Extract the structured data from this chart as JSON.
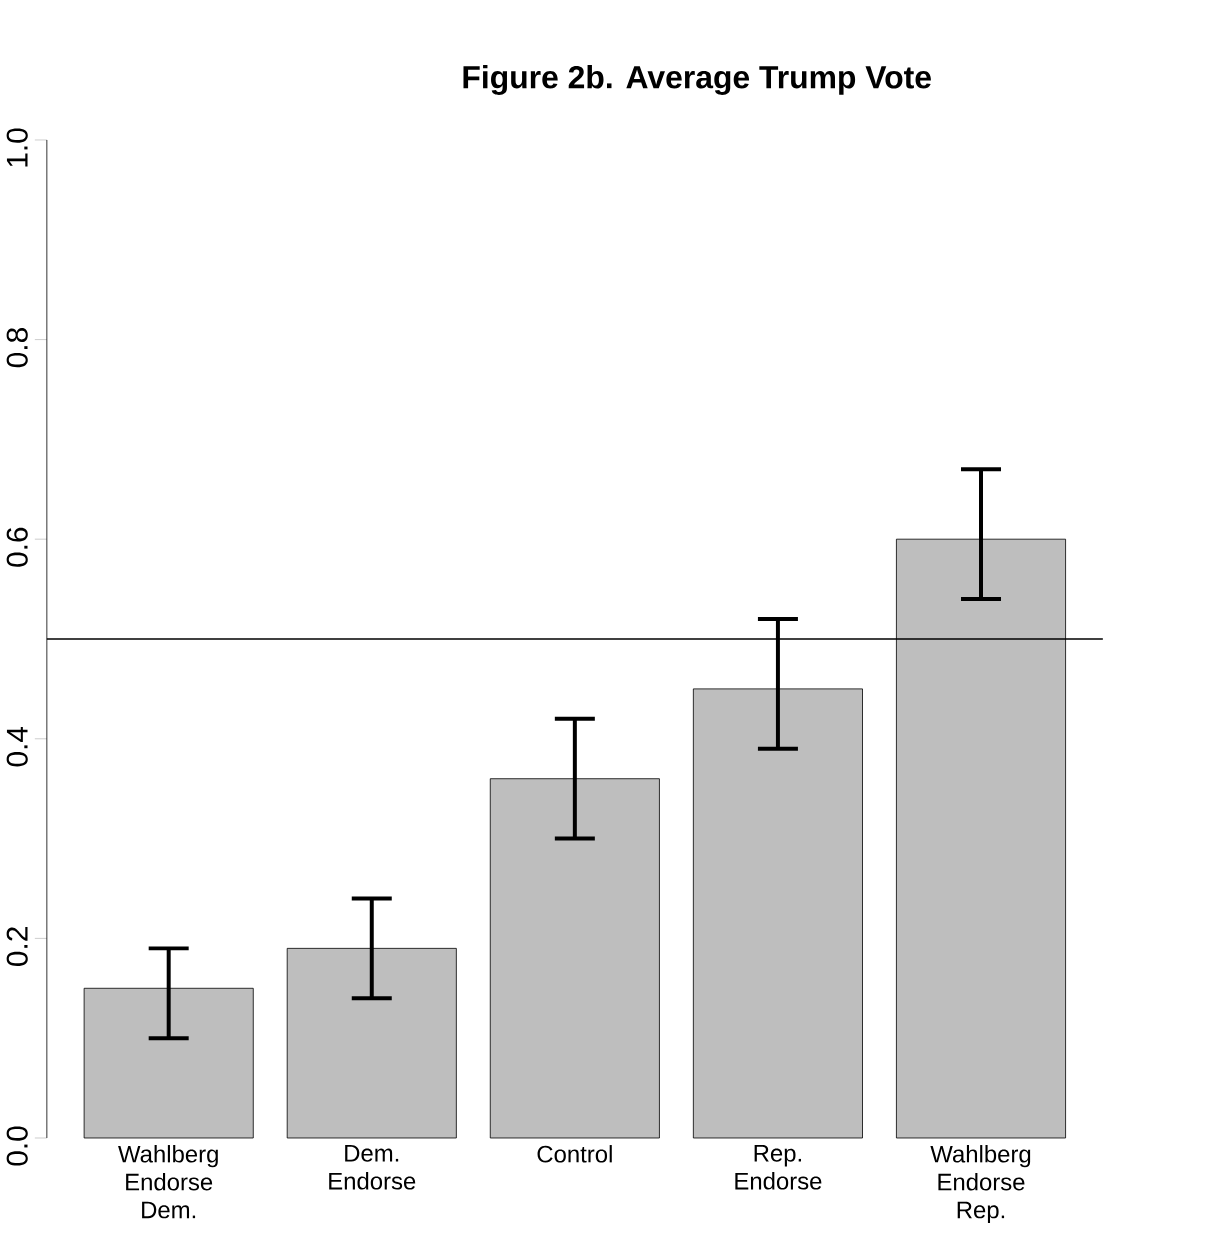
{
  "chart_data": {
    "type": "bar",
    "title": "Figure 2b. Average Trump Vote",
    "categories": [
      "Wahlberg Endorse Dem.",
      "Dem. Endorse",
      "Control",
      "Rep. Endorse",
      "Wahlberg Endorse Rep."
    ],
    "values": [
      0.15,
      0.19,
      0.36,
      0.45,
      0.6
    ],
    "errors": [
      [
        0.1,
        0.19
      ],
      [
        0.14,
        0.24
      ],
      [
        0.3,
        0.42
      ],
      [
        0.39,
        0.52
      ],
      [
        0.54,
        0.67
      ]
    ],
    "color": "#bebebe",
    "ylim": [
      0,
      1
    ],
    "yticks": [
      {
        "value": 0,
        "label": "0.0"
      },
      0.2,
      0.4,
      0.6,
      0.8,
      {
        "value": 1,
        "label": "1.0"
      }
    ],
    "ref_lines": [
      {
        "axis": "y",
        "value": 0.5,
        "color": "#000000"
      }
    ],
    "grid": false
  }
}
